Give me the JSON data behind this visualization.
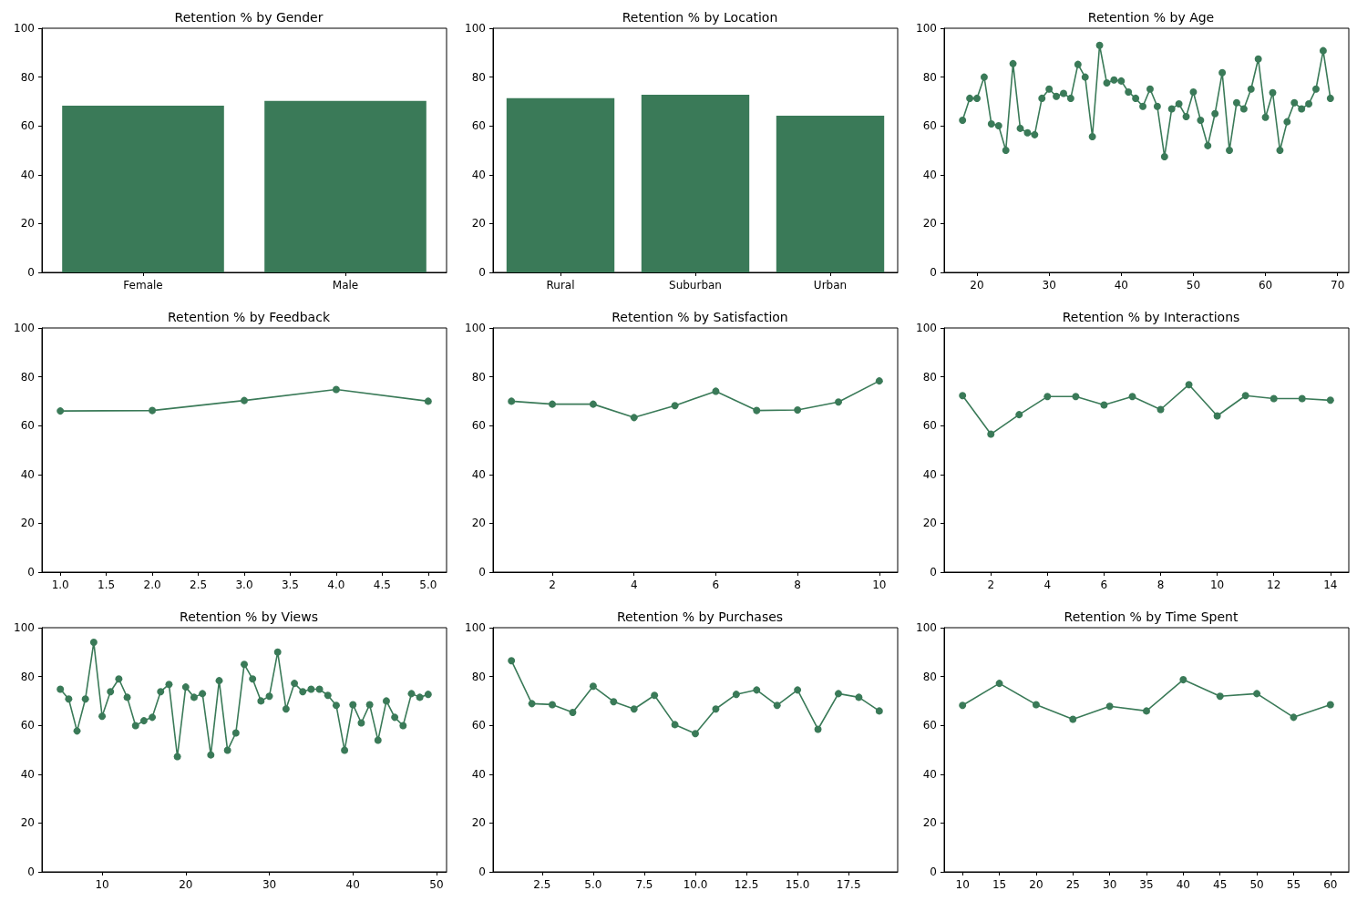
{
  "chart_data": [
    {
      "type": "bar",
      "title": "Retention % by Gender",
      "categories": [
        "Female",
        "Male"
      ],
      "values": [
        68.3,
        70.2
      ],
      "color": "#3a7a58",
      "ylim": [
        0,
        100
      ],
      "yticks": [
        0,
        20,
        40,
        60,
        80,
        100
      ],
      "grid": false
    },
    {
      "type": "bar",
      "title": "Retention % by Location",
      "categories": [
        "Rural",
        "Suburban",
        "Urban"
      ],
      "values": [
        71.4,
        72.8,
        64.2
      ],
      "color": "#3a7a58",
      "ylim": [
        0,
        100
      ],
      "yticks": [
        0,
        20,
        40,
        60,
        80,
        100
      ],
      "grid": false
    },
    {
      "type": "line",
      "title": "Retention % by Age",
      "x": [
        18,
        19,
        20,
        21,
        22,
        23,
        24,
        25,
        26,
        27,
        28,
        29,
        30,
        31,
        32,
        33,
        34,
        35,
        36,
        37,
        38,
        39,
        40,
        41,
        42,
        43,
        44,
        45,
        46,
        47,
        48,
        49,
        50,
        51,
        52,
        53,
        54,
        55,
        56,
        57,
        58,
        59,
        60,
        61,
        62,
        63,
        64,
        65,
        66,
        67,
        68,
        69
      ],
      "values": [
        62.3,
        71.3,
        71.3,
        80,
        60.8,
        60.1,
        50,
        85.5,
        59,
        57.2,
        56.4,
        71.3,
        75.1,
        72.1,
        73.3,
        71.3,
        85.2,
        80,
        55.6,
        93,
        77.6,
        78.8,
        78.4,
        73.9,
        71.3,
        68,
        75.1,
        68,
        47.4,
        67,
        69,
        63.8,
        73.9,
        62.3,
        51.9,
        65,
        81.8,
        50,
        69.5,
        67,
        75.1,
        87.4,
        63.5,
        73.6,
        50,
        61.7,
        69.5,
        67,
        69,
        75.1,
        90.8,
        71.3
      ],
      "color": "#3a7a58",
      "marker": "circle",
      "xlim": [
        15.45,
        71.55
      ],
      "xticks": [
        20,
        30,
        40,
        50,
        60,
        70
      ],
      "ylim": [
        0,
        100
      ],
      "yticks": [
        0,
        20,
        40,
        60,
        80,
        100
      ],
      "grid": false
    },
    {
      "type": "line",
      "title": "Retention % by Feedback",
      "x": [
        1,
        2,
        3,
        4,
        5
      ],
      "values": [
        66,
        66.2,
        70.3,
        74.8,
        70
      ],
      "color": "#3a7a58",
      "marker": "circle",
      "xlim": [
        0.8,
        5.2
      ],
      "xticks": [
        {
          "value": 1,
          "label": "1.0"
        },
        1.5,
        {
          "value": 2,
          "label": "2.0"
        },
        2.5,
        {
          "value": 3,
          "label": "3.0"
        },
        3.5,
        {
          "value": 4,
          "label": "4.0"
        },
        4.5,
        {
          "value": 5,
          "label": "5.0"
        }
      ],
      "ylim": [
        0,
        100
      ],
      "yticks": [
        0,
        20,
        40,
        60,
        80,
        100
      ],
      "grid": false
    },
    {
      "type": "line",
      "title": "Retention % by Satisfaction",
      "x": [
        1,
        2,
        3,
        4,
        5,
        6,
        7,
        8,
        9,
        10
      ],
      "values": [
        70,
        68.8,
        68.8,
        63.3,
        68.2,
        74.1,
        66.2,
        66.4,
        69.7,
        78.3
      ],
      "color": "#3a7a58",
      "marker": "circle",
      "xlim": [
        0.55,
        10.45
      ],
      "xticks": [
        2,
        4,
        6,
        8,
        10
      ],
      "ylim": [
        0,
        100
      ],
      "yticks": [
        0,
        20,
        40,
        60,
        80,
        100
      ],
      "grid": false
    },
    {
      "type": "line",
      "title": "Retention % by Interactions",
      "x": [
        1,
        2,
        3,
        4,
        5,
        6,
        7,
        8,
        9,
        10,
        11,
        12,
        13,
        14
      ],
      "values": [
        72.3,
        56.5,
        64.5,
        71.9,
        71.9,
        68.5,
        71.9,
        66.6,
        76.8,
        64,
        72.3,
        71.1,
        71.1,
        70.4
      ],
      "color": "#3a7a58",
      "marker": "circle",
      "xlim": [
        0.35,
        14.65
      ],
      "xticks": [
        2,
        4,
        6,
        8,
        10,
        12,
        14
      ],
      "ylim": [
        0,
        100
      ],
      "yticks": [
        0,
        20,
        40,
        60,
        80,
        100
      ],
      "grid": false
    },
    {
      "type": "line",
      "title": "Retention % by Views",
      "x": [
        5,
        6,
        7,
        8,
        9,
        10,
        11,
        12,
        13,
        14,
        15,
        16,
        17,
        18,
        19,
        20,
        21,
        22,
        23,
        24,
        25,
        26,
        27,
        28,
        29,
        30,
        31,
        32,
        33,
        34,
        35,
        36,
        37,
        38,
        39,
        40,
        41,
        42,
        43,
        44,
        45,
        46,
        47,
        48,
        49
      ],
      "values": [
        74.8,
        70.8,
        57.7,
        70.8,
        94,
        63.7,
        73.8,
        79,
        71.5,
        59.9,
        61.9,
        63.3,
        73.8,
        76.8,
        47.2,
        75.7,
        71.5,
        73,
        47.9,
        78.3,
        49.8,
        56.9,
        85,
        79,
        70,
        71.9,
        90,
        66.7,
        77.2,
        73.8,
        74.8,
        74.8,
        72.3,
        68.2,
        49.8,
        68.5,
        61,
        68.5,
        53.9,
        70,
        63.3,
        59.9,
        73,
        71.5,
        72.7
      ],
      "color": "#3a7a58",
      "marker": "circle",
      "xlim": [
        2.8,
        51.2
      ],
      "xticks": [
        10,
        20,
        30,
        40,
        50
      ],
      "ylim": [
        0,
        100
      ],
      "yticks": [
        0,
        20,
        40,
        60,
        80,
        100
      ],
      "grid": false
    },
    {
      "type": "line",
      "title": "Retention % by Purchases",
      "x": [
        1,
        2,
        3,
        4,
        5,
        6,
        7,
        8,
        9,
        10,
        11,
        12,
        13,
        14,
        15,
        16,
        17,
        18,
        19
      ],
      "values": [
        86.5,
        68.9,
        68.5,
        65.3,
        76,
        69.7,
        66.7,
        72.3,
        60.3,
        56.6,
        66.7,
        72.7,
        74.5,
        68.2,
        74.5,
        58.4,
        73,
        71.5,
        65.9
      ],
      "color": "#3a7a58",
      "marker": "circle",
      "xlim": [
        0.1,
        19.9
      ],
      "xticks": [
        2.5,
        {
          "value": 5,
          "label": "5.0"
        },
        7.5,
        {
          "value": 10,
          "label": "10.0"
        },
        12.5,
        {
          "value": 15,
          "label": "15.0"
        },
        17.5
      ],
      "ylim": [
        0,
        100
      ],
      "yticks": [
        0,
        20,
        40,
        60,
        80,
        100
      ],
      "grid": false
    },
    {
      "type": "line",
      "title": "Retention % by Time Spent",
      "x": [
        10,
        15,
        20,
        25,
        30,
        35,
        40,
        45,
        50,
        55,
        60
      ],
      "values": [
        68.2,
        77.2,
        68.5,
        62.5,
        67.8,
        65.9,
        78.7,
        71.9,
        73,
        63.3,
        68.5
      ],
      "color": "#3a7a58",
      "marker": "circle",
      "xlim": [
        7.5,
        62.5
      ],
      "xticks": [
        10,
        15,
        20,
        25,
        30,
        35,
        40,
        45,
        50,
        55,
        60
      ],
      "ylim": [
        0,
        100
      ],
      "yticks": [
        0,
        20,
        40,
        60,
        80,
        100
      ],
      "grid": false
    }
  ]
}
